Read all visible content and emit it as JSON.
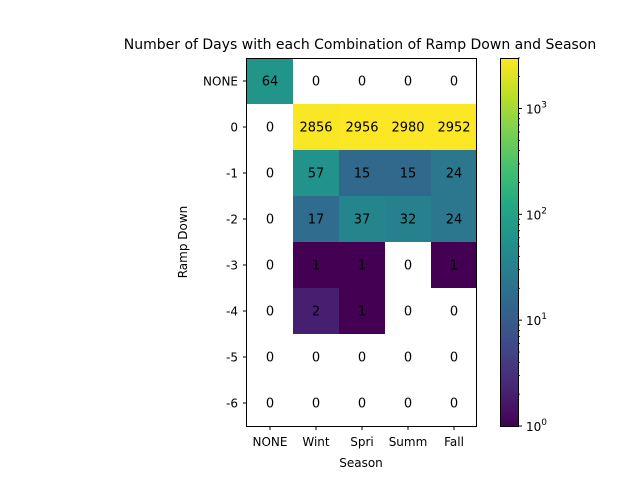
{
  "chart_data": {
    "type": "heatmap",
    "title": "Number of Days with each Combination of Ramp Down and Season",
    "xlabel": "Season",
    "ylabel": "Ramp Down",
    "x_categories": [
      "NONE",
      "Wint",
      "Spri",
      "Summ",
      "Fall"
    ],
    "y_categories": [
      "NONE",
      "0",
      "-1",
      "-2",
      "-3",
      "-4",
      "-5",
      "-6"
    ],
    "values": [
      [
        64,
        0,
        0,
        0,
        0
      ],
      [
        0,
        2856,
        2956,
        2980,
        2952
      ],
      [
        0,
        57,
        15,
        15,
        24
      ],
      [
        0,
        17,
        37,
        32,
        24
      ],
      [
        0,
        1,
        1,
        0,
        1
      ],
      [
        0,
        2,
        1,
        0,
        0
      ],
      [
        0,
        0,
        0,
        0,
        0
      ],
      [
        0,
        0,
        0,
        0,
        0
      ]
    ],
    "zero_cells_blank": true,
    "color_scale": "log",
    "colormap": "viridis",
    "colorbar": {
      "range": [
        1,
        3000
      ],
      "ticks": [
        {
          "value": 1,
          "base": "10",
          "exp": "0"
        },
        {
          "value": 10,
          "base": "10",
          "exp": "1"
        },
        {
          "value": 100,
          "base": "10",
          "exp": "2"
        },
        {
          "value": 1000,
          "base": "10",
          "exp": "3"
        }
      ]
    },
    "grid": false
  }
}
